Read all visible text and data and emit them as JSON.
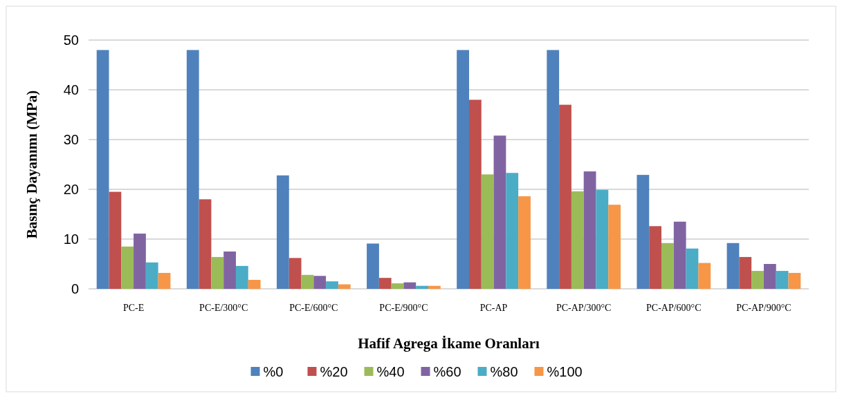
{
  "chart_data": {
    "type": "bar",
    "xlabel": "Hafif Agrega İkame Oranları",
    "ylabel": "Basınç Dayanımı (MPa)",
    "categories": [
      "PC-E",
      "PC-E/300°C",
      "PC-E/600°C",
      "PC-E/900°C",
      "PC-AP",
      "PC-AP/300°C",
      "PC-AP/600°C",
      "PC-AP/900°C"
    ],
    "series": [
      {
        "name": "%0",
        "color": "#4f81bd",
        "values": [
          48,
          48,
          22.8,
          9.1,
          48,
          48,
          22.9,
          9.2
        ]
      },
      {
        "name": "%20",
        "color": "#c0504d",
        "values": [
          19.5,
          18,
          6.2,
          2.2,
          38,
          37,
          12.6,
          6.4
        ]
      },
      {
        "name": "%40",
        "color": "#9bbb59",
        "values": [
          8.5,
          6.4,
          2.8,
          1.1,
          23,
          19.6,
          9.2,
          3.6
        ]
      },
      {
        "name": "%60",
        "color": "#8064a2",
        "values": [
          11.1,
          7.5,
          2.6,
          1.3,
          30.8,
          23.6,
          13.5,
          5
        ]
      },
      {
        "name": "%80",
        "color": "#4bacc6",
        "values": [
          5.3,
          4.6,
          1.5,
          0.6,
          23.3,
          19.9,
          8.1,
          3.6
        ]
      },
      {
        "name": "%100",
        "color": "#f79646",
        "values": [
          3.2,
          1.8,
          0.9,
          0.6,
          18.6,
          16.9,
          5.2,
          3.2
        ]
      }
    ],
    "ylim": [
      0,
      50
    ],
    "yticks": [
      0,
      10,
      20,
      30,
      40,
      50
    ],
    "grid": "y",
    "legend": "bottom"
  }
}
